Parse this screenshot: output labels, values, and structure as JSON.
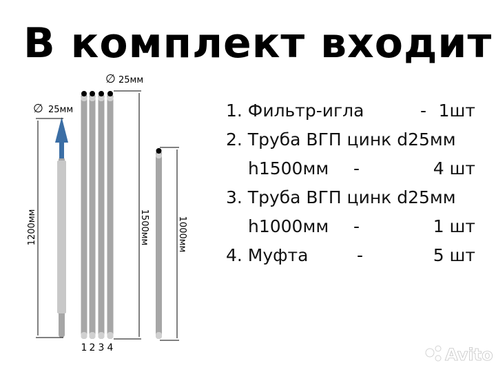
{
  "title": "В комплект входит:",
  "items": [
    {
      "text": "1. Фильтр-игла",
      "dash": "-",
      "qty": "1шт"
    },
    {
      "text": "2. Труба ВГП цинк d25мм",
      "dash": "",
      "qty": ""
    },
    {
      "text": "h1500мм",
      "dash": "-",
      "qty": "4 шт"
    },
    {
      "text": "3. Труба ВГП цинк d25мм",
      "dash": "",
      "qty": ""
    },
    {
      "text": "h1000мм",
      "dash": "-",
      "qty": "1 шт"
    },
    {
      "text": "4. Муфта",
      "dash": "-",
      "qty": "5 шт"
    }
  ],
  "drawing": {
    "filter_diameter": "25мм",
    "filter_length": "1200мм",
    "pipes_diameter": "25мм",
    "pipes_length": "1500мм",
    "pipe_short_length": "1000мм",
    "pipe_numbers": [
      "1",
      "2",
      "3",
      "4"
    ],
    "colors": {
      "pipe": "#a6a6a6",
      "sleeve": "#c8c8c8",
      "arrow": "#3b6ea5",
      "cap": "#000000"
    }
  },
  "watermark": "Avito"
}
